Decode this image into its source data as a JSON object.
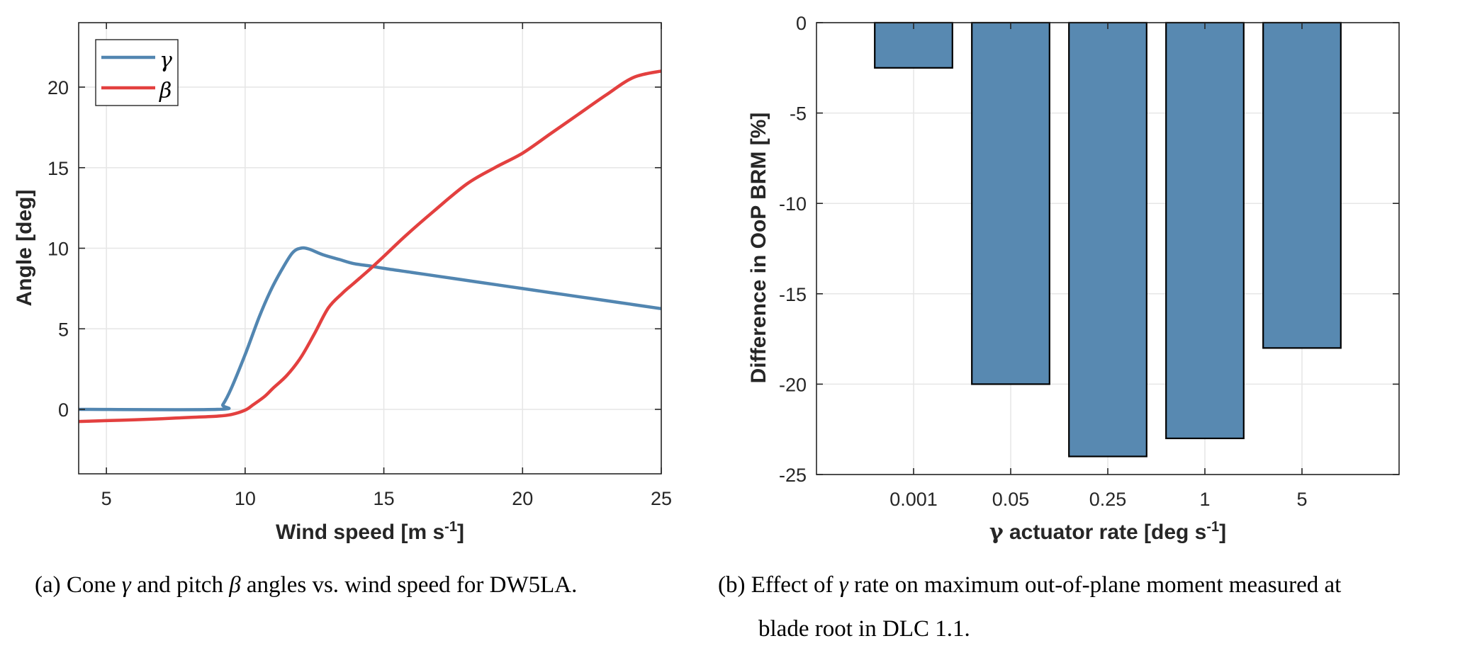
{
  "chart_data": [
    {
      "id": "a",
      "type": "line",
      "title": "",
      "xlabel": "Wind speed [m s",
      "xlabel_sup": "-1",
      "xlabel_close": "]",
      "ylabel": "Angle [deg]",
      "xlim": [
        4,
        25
      ],
      "ylim": [
        -4,
        24
      ],
      "xticks": [
        5,
        10,
        15,
        20,
        25
      ],
      "yticks": [
        0,
        5,
        10,
        15,
        20
      ],
      "grid": true,
      "legend": {
        "placement": "top-left",
        "entries": [
          "γ",
          "β"
        ]
      },
      "series": [
        {
          "name": "γ",
          "color": "#5286b1",
          "x": [
            4,
            9.0,
            9.2,
            9.5,
            10.0,
            10.5,
            10.9,
            11.3,
            11.7,
            12.0,
            12.3,
            12.8,
            13.4,
            13.9,
            14.5,
            15.0,
            16.0,
            17.0,
            18.0,
            19.0,
            20.0,
            21.0,
            22.0,
            23.0,
            24.0,
            25.0
          ],
          "y": [
            0,
            0,
            0.3,
            1.3,
            3.4,
            5.7,
            7.3,
            8.6,
            9.7,
            10.0,
            9.95,
            9.6,
            9.3,
            9.05,
            8.9,
            8.75,
            8.5,
            8.25,
            8.0,
            7.75,
            7.5,
            7.25,
            7.0,
            6.75,
            6.5,
            6.25
          ]
        },
        {
          "name": "β",
          "color": "#e3403f",
          "x": [
            4,
            5,
            6,
            7,
            8,
            9.0,
            9.5,
            10.0,
            10.3,
            10.7,
            11.0,
            11.5,
            12.0,
            12.5,
            13.0,
            13.5,
            13.9,
            14.5,
            15.0,
            15.8,
            16.8,
            18.0,
            19.0,
            20.0,
            21.0,
            22.0,
            23.0,
            24.0,
            25.0
          ],
          "y": [
            -0.75,
            -0.7,
            -0.65,
            -0.58,
            -0.5,
            -0.42,
            -0.32,
            -0.05,
            0.3,
            0.8,
            1.3,
            2.1,
            3.2,
            4.7,
            6.3,
            7.2,
            7.8,
            8.7,
            9.5,
            10.8,
            12.3,
            14.0,
            15.0,
            15.9,
            17.1,
            18.3,
            19.5,
            20.6,
            21.0
          ]
        }
      ],
      "caption": {
        "prefix": "(a) Cone ",
        "sym1": "γ",
        "mid": " and pitch ",
        "sym2": "β",
        "suffix": " angles vs. wind speed for DW5LA."
      }
    },
    {
      "id": "b",
      "type": "bar",
      "title": "",
      "xlabel_sym": "γ",
      "xlabel": " actuator rate [deg s",
      "xlabel_sup": "-1",
      "xlabel_close": "]",
      "ylabel": "Difference in OoP BRM [%]",
      "categories": [
        "0.001",
        "0.05",
        "0.25",
        "1",
        "5"
      ],
      "values": [
        -2.5,
        -20,
        -24,
        -23,
        -18
      ],
      "ylim": [
        -25,
        0
      ],
      "yticks": [
        0,
        -5,
        -10,
        -15,
        -20,
        -25
      ],
      "grid": true,
      "bar_color": "#5889b1",
      "bar_edge_color": "#000000",
      "caption": {
        "line1_prefix": "(b) Effect of ",
        "sym": "γ",
        "line1_suffix": " rate on maximum out-of-plane moment measured at",
        "line2": "blade root in DLC 1.1."
      }
    }
  ]
}
